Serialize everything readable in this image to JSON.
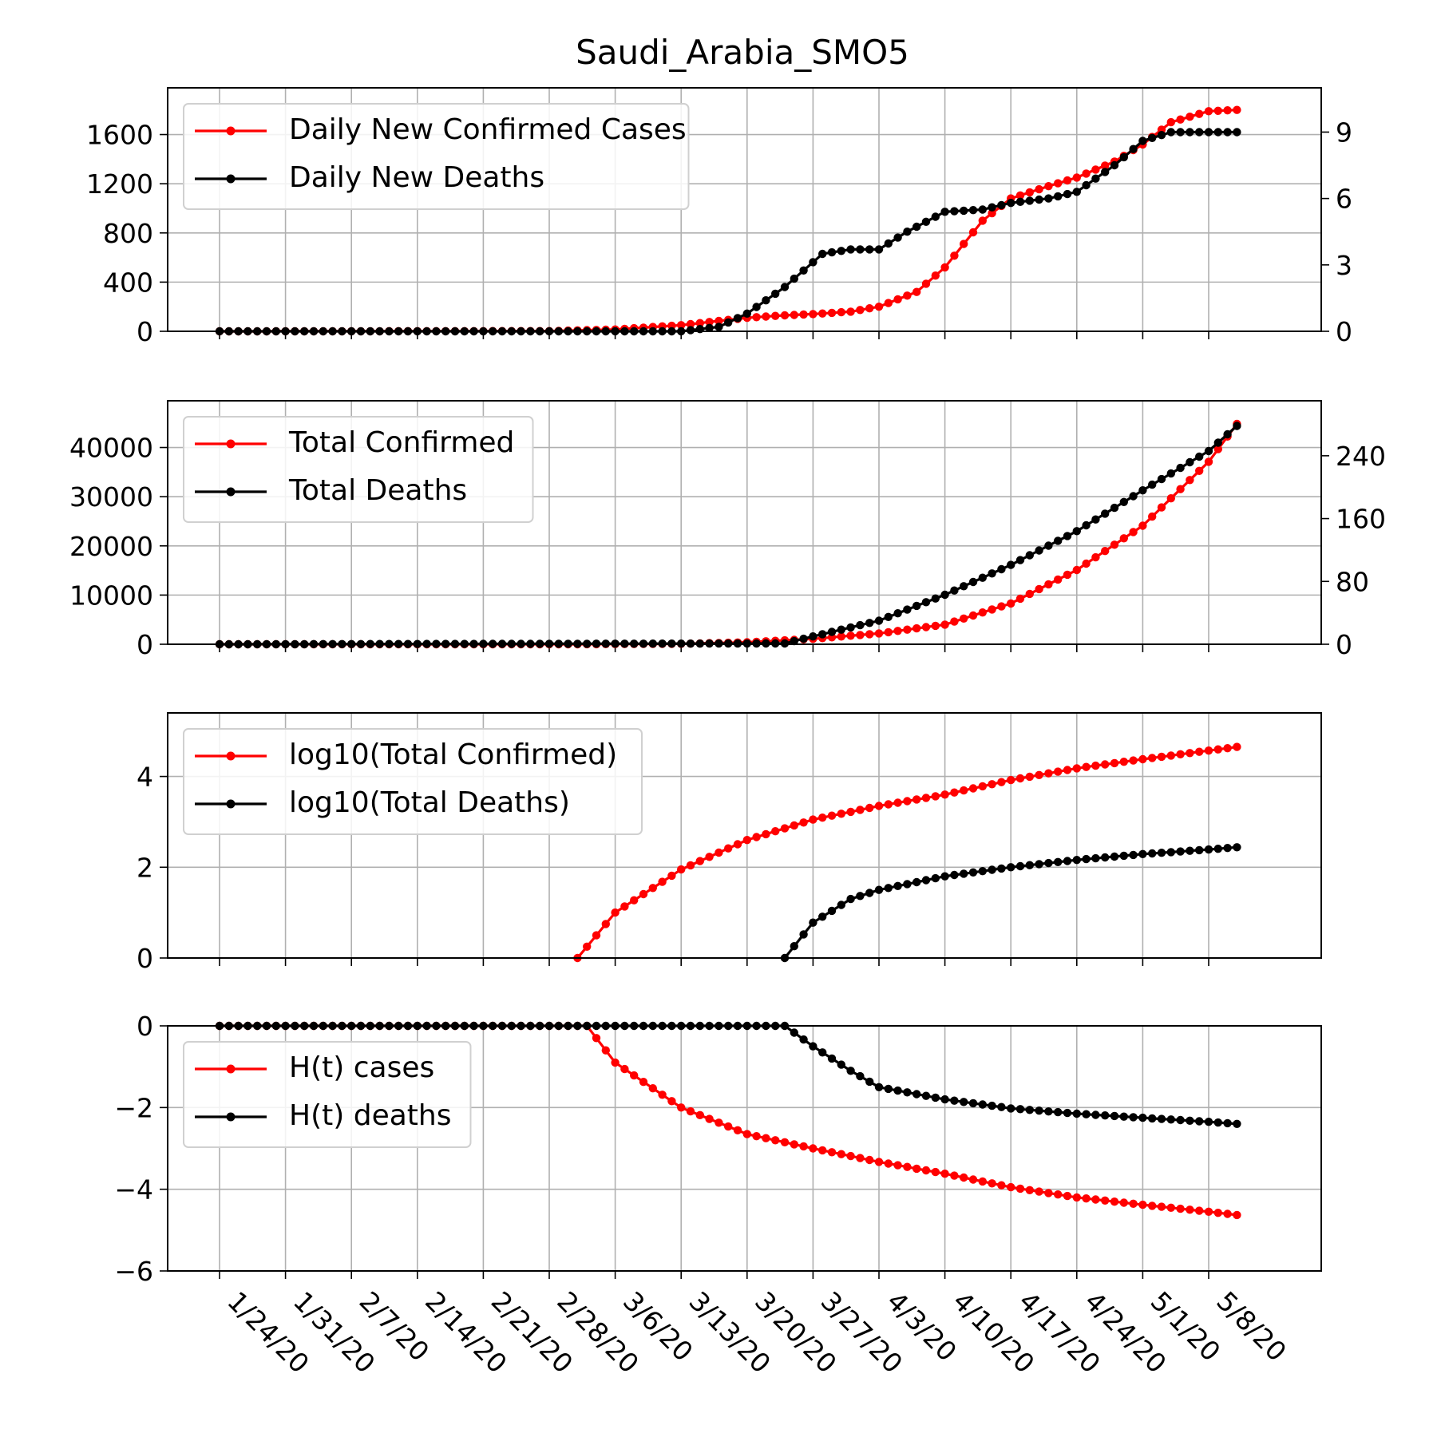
{
  "chart_data": [
    {
      "type": "line",
      "panel": "daily",
      "title": "Saudi_Arabia_SMO5",
      "x_start_date": "2020-01-24",
      "x_ticks": [
        "1/24/20",
        "1/31/20",
        "2/7/20",
        "2/14/20",
        "2/21/20",
        "2/28/20",
        "3/6/20",
        "3/13/20",
        "3/20/20",
        "3/27/20",
        "4/3/20",
        "4/10/20",
        "4/17/20",
        "4/24/20",
        "5/1/20",
        "5/8/20"
      ],
      "ylim": [
        0,
        1980
      ],
      "yticks": [
        "0",
        "400",
        "800",
        "1200",
        "1600"
      ],
      "ylim_right": [
        0,
        11
      ],
      "yticks_right": [
        "0",
        "3",
        "6",
        "9"
      ],
      "grid": true,
      "legend_position": "upper-left",
      "series": [
        {
          "name": "Daily New Confirmed Cases",
          "color": "#ff0000",
          "axis": "left",
          "x": [
            "1/24/20",
            "2/28/20",
            "3/6/20",
            "3/13/20",
            "3/20/20",
            "3/24/20",
            "3/27/20",
            "3/31/20",
            "4/3/20",
            "4/7/20",
            "4/10/20",
            "4/14/20",
            "4/17/20",
            "4/21/20",
            "4/24/20",
            "4/28/20",
            "5/1/20",
            "5/4/20",
            "5/8/20",
            "5/11/20"
          ],
          "values": [
            0,
            2,
            15,
            50,
            110,
            130,
            140,
            160,
            200,
            320,
            520,
            900,
            1080,
            1180,
            1250,
            1380,
            1520,
            1700,
            1790,
            1800
          ]
        },
        {
          "name": "Daily New Deaths",
          "color": "#000000",
          "axis": "right",
          "x": [
            "1/24/20",
            "3/13/20",
            "3/17/20",
            "3/20/20",
            "3/24/20",
            "3/28/20",
            "3/31/20",
            "4/3/20",
            "4/6/20",
            "4/10/20",
            "4/14/20",
            "4/17/20",
            "4/21/20",
            "4/24/20",
            "4/28/20",
            "5/1/20",
            "5/4/20",
            "5/8/20",
            "5/11/20"
          ],
          "values": [
            0,
            0,
            0.2,
            0.8,
            2.0,
            3.5,
            3.7,
            3.7,
            4.5,
            5.4,
            5.5,
            5.8,
            6.0,
            6.3,
            7.5,
            8.6,
            9.0,
            9.0,
            9.0
          ]
        }
      ]
    },
    {
      "type": "line",
      "panel": "totals",
      "ylim": [
        0,
        49500
      ],
      "yticks": [
        "0",
        "10000",
        "20000",
        "30000",
        "40000"
      ],
      "ylim_right": [
        0,
        310
      ],
      "yticks_right": [
        "0",
        "80",
        "160",
        "240"
      ],
      "grid": true,
      "legend_position": "upper-left",
      "series": [
        {
          "name": "Total Confirmed",
          "color": "#ff0000",
          "axis": "left",
          "x": [
            "1/24/20",
            "3/2/20",
            "3/13/20",
            "3/20/20",
            "3/27/20",
            "4/3/20",
            "4/10/20",
            "4/17/20",
            "4/24/20",
            "5/1/20",
            "5/8/20",
            "5/11/20"
          ],
          "values": [
            0,
            1,
            90,
            400,
            1100,
            2200,
            4000,
            8300,
            15100,
            24100,
            37100,
            44800
          ]
        },
        {
          "name": "Total Deaths",
          "color": "#000000",
          "axis": "right",
          "x": [
            "1/24/20",
            "3/24/20",
            "3/27/20",
            "4/3/20",
            "4/10/20",
            "4/17/20",
            "4/24/20",
            "5/1/20",
            "5/8/20",
            "5/11/20"
          ],
          "values": [
            0,
            1,
            10,
            30,
            63,
            101,
            144,
            196,
            246,
            278
          ]
        }
      ]
    },
    {
      "type": "line",
      "panel": "log",
      "ylim": [
        0,
        5.4
      ],
      "yticks": [
        "0",
        "2",
        "4"
      ],
      "grid": true,
      "legend_position": "upper-left",
      "series": [
        {
          "name": "log10(Total Confirmed)",
          "color": "#ff0000",
          "x": [
            "3/2/20",
            "3/6/20",
            "3/13/20",
            "3/20/20",
            "3/27/20",
            "4/3/20",
            "4/10/20",
            "4/17/20",
            "4/24/20",
            "5/1/20",
            "5/8/20",
            "5/11/20"
          ],
          "values": [
            0,
            1.0,
            1.95,
            2.6,
            3.05,
            3.35,
            3.6,
            3.92,
            4.18,
            4.38,
            4.57,
            4.65
          ]
        },
        {
          "name": "log10(Total Deaths)",
          "color": "#000000",
          "x": [
            "3/24/20",
            "3/27/20",
            "3/31/20",
            "4/3/20",
            "4/10/20",
            "4/17/20",
            "4/24/20",
            "5/1/20",
            "5/8/20",
            "5/11/20"
          ],
          "values": [
            0,
            0.78,
            1.3,
            1.5,
            1.8,
            2.0,
            2.16,
            2.29,
            2.39,
            2.44
          ]
        }
      ]
    },
    {
      "type": "line",
      "panel": "entropy",
      "ylim": [
        -6,
        0
      ],
      "yticks": [
        "0",
        "−2",
        "−4",
        "−6"
      ],
      "grid": true,
      "legend_position": "upper-left",
      "series": [
        {
          "name": "H(t) cases",
          "color": "#ff0000",
          "x": [
            "1/24/20",
            "3/3/20",
            "3/6/20",
            "3/13/20",
            "3/20/20",
            "3/27/20",
            "4/3/20",
            "4/10/20",
            "4/17/20",
            "4/24/20",
            "5/1/20",
            "5/8/20",
            "5/11/20"
          ],
          "values": [
            0,
            0,
            -0.9,
            -2.0,
            -2.65,
            -3.0,
            -3.33,
            -3.62,
            -3.95,
            -4.2,
            -4.38,
            -4.55,
            -4.63
          ]
        },
        {
          "name": "H(t) deaths",
          "color": "#000000",
          "x": [
            "1/24/20",
            "3/15/20",
            "3/24/20",
            "3/27/20",
            "3/31/20",
            "4/3/20",
            "4/10/20",
            "4/17/20",
            "4/24/20",
            "5/1/20",
            "5/8/20",
            "5/11/20"
          ],
          "values": [
            0,
            0,
            0,
            -0.5,
            -1.1,
            -1.5,
            -1.8,
            -2.02,
            -2.15,
            -2.25,
            -2.35,
            -2.4
          ]
        }
      ]
    }
  ]
}
